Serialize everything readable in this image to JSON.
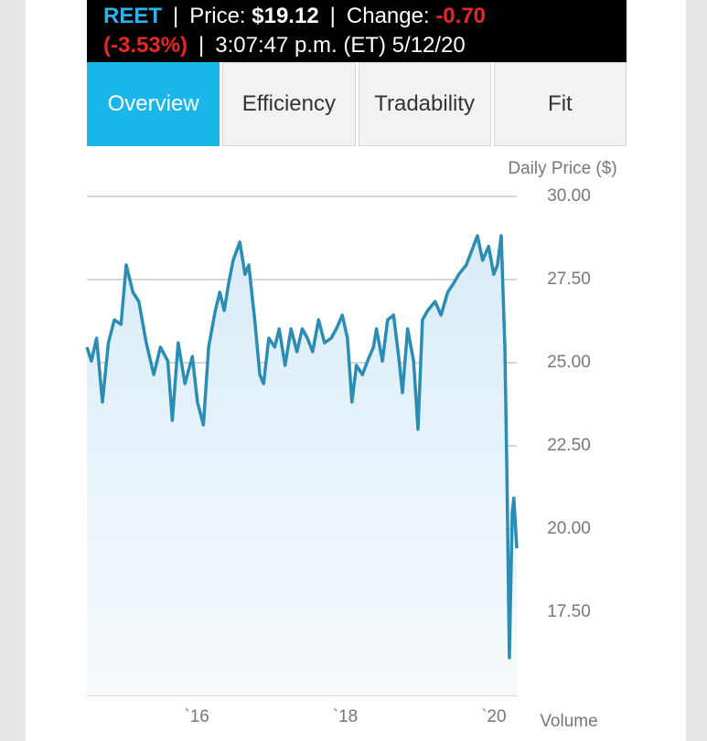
{
  "header": {
    "ticker": "REET",
    "sep1": "|",
    "price_label": "Price: ",
    "price": "$19.12",
    "sep2": "|",
    "change_label": "Change: ",
    "change": "-0.70",
    "change_pct": "(-3.53%)",
    "sep3": "|",
    "timestamp": "3:07:47 p.m. (ET) 5/12/20"
  },
  "tabs": [
    "Overview",
    "Efficiency",
    "Tradability",
    "Fit"
  ],
  "active_tab": 0,
  "chart_data": {
    "type": "line",
    "y_axis_label": "Daily Price ($)",
    "volume_label": "Volume",
    "color": "#2b8cb4",
    "grid": true,
    "xlim": [
      2014.52,
      2020.31
    ],
    "ylim": [
      15,
      30
    ],
    "xticks": [
      {
        "value": 2016,
        "label": "`16"
      },
      {
        "value": 2018,
        "label": "`18"
      },
      {
        "value": 2020,
        "label": "`20"
      }
    ],
    "yticks": [
      {
        "value": 30,
        "label": "30.00"
      },
      {
        "value": 27.5,
        "label": "27.50"
      },
      {
        "value": 25,
        "label": "25.00"
      },
      {
        "value": 22.5,
        "label": "22.50"
      },
      {
        "value": 20,
        "label": "20.00"
      },
      {
        "value": 17.5,
        "label": "17.50"
      }
    ],
    "x": [
      2014.52,
      2014.58,
      2014.65,
      2014.73,
      2014.81,
      2014.89,
      2014.98,
      2015.05,
      2015.14,
      2015.22,
      2015.32,
      2015.42,
      2015.51,
      2015.61,
      2015.67,
      2015.75,
      2015.84,
      2015.94,
      2016.01,
      2016.09,
      2016.16,
      2016.25,
      2016.31,
      2016.37,
      2016.43,
      2016.49,
      2016.58,
      2016.65,
      2016.7,
      2016.78,
      2016.85,
      2016.9,
      2016.97,
      2017.05,
      2017.11,
      2017.19,
      2017.27,
      2017.35,
      2017.42,
      2017.49,
      2017.56,
      2017.64,
      2017.72,
      2017.81,
      2017.88,
      2017.96,
      2018.03,
      2018.09,
      2018.15,
      2018.23,
      2018.3,
      2018.38,
      2018.42,
      2018.5,
      2018.57,
      2018.65,
      2018.72,
      2018.77,
      2018.84,
      2018.92,
      2018.98,
      2019.04,
      2019.11,
      2019.21,
      2019.29,
      2019.38,
      2019.46,
      2019.53,
      2019.63,
      2019.7,
      2019.78,
      2019.85,
      2019.93,
      2020.0,
      2020.05,
      2020.1,
      2020.15,
      2020.18,
      2020.21,
      2020.25,
      2020.27,
      2020.31
    ],
    "values": [
      25.47,
      25.05,
      25.74,
      23.82,
      25.6,
      26.29,
      26.15,
      27.94,
      27.12,
      26.84,
      25.6,
      24.64,
      25.47,
      25.05,
      23.27,
      25.6,
      24.37,
      25.19,
      23.82,
      23.13,
      25.47,
      26.57,
      27.12,
      26.57,
      27.39,
      28.08,
      28.63,
      27.66,
      27.94,
      26.29,
      24.64,
      24.37,
      25.74,
      25.47,
      26.02,
      24.92,
      26.02,
      25.33,
      26.02,
      25.74,
      25.33,
      26.29,
      25.6,
      25.74,
      26.02,
      26.43,
      25.74,
      23.82,
      24.92,
      24.64,
      25.05,
      25.47,
      26.02,
      25.05,
      26.29,
      26.43,
      25.19,
      24.1,
      26.02,
      25.05,
      23.0,
      26.29,
      26.57,
      26.84,
      26.43,
      27.12,
      27.39,
      27.66,
      27.94,
      28.35,
      28.82,
      28.08,
      28.5,
      27.66,
      27.94,
      28.82,
      25.47,
      21.35,
      16.13,
      20.52,
      20.93,
      19.42
    ]
  }
}
